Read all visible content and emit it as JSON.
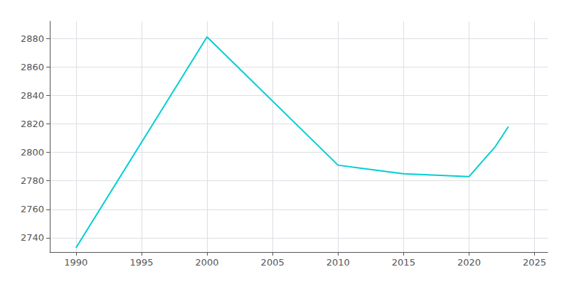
{
  "chart_data": {
    "type": "line",
    "x": [
      1990,
      2000,
      2010,
      2015,
      2020,
      2022,
      2023
    ],
    "values": [
      2733,
      2881,
      2791,
      2785,
      2783,
      2804,
      2818
    ],
    "color": "#00CED1",
    "xlim": [
      1988,
      2026
    ],
    "ylim": [
      2730,
      2892
    ],
    "xticks": [
      1990,
      1995,
      2000,
      2005,
      2010,
      2015,
      2020,
      2025
    ],
    "yticks": [
      2740,
      2760,
      2780,
      2800,
      2820,
      2840,
      2860,
      2880
    ],
    "grid": true
  }
}
